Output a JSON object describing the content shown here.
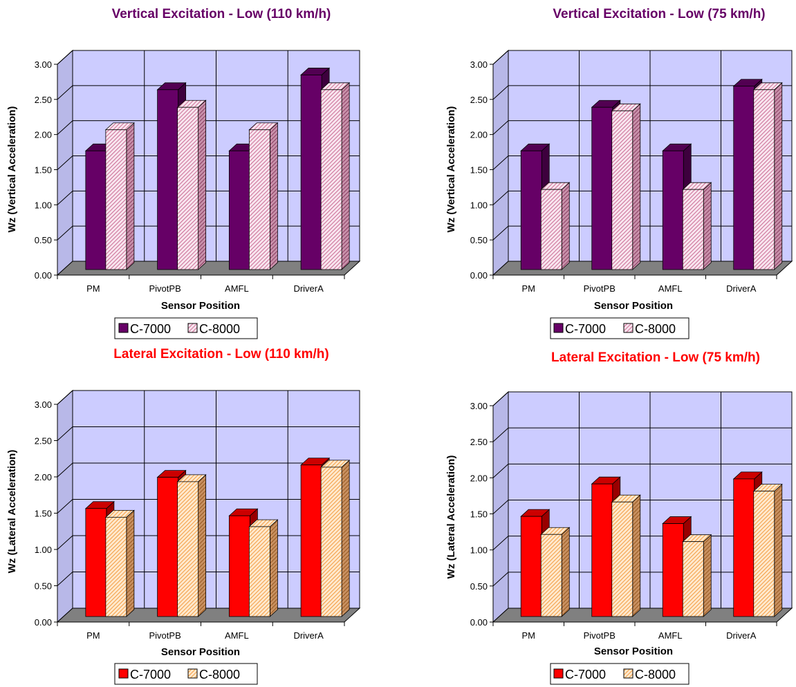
{
  "chart_data": [
    {
      "type": "bar",
      "title": "Vertical Excitation - Low (110 km/h)",
      "title_color": "#660066",
      "xlabel": "Sensor Position",
      "ylabel": "Wz (Vertical Acceleration)",
      "categories": [
        "PM",
        "PivotPB",
        "AMFL",
        "DriverA"
      ],
      "ylim": [
        0,
        3.0
      ],
      "yticks": [
        "0.00",
        "0.50",
        "1.00",
        "1.50",
        "2.00",
        "2.50",
        "3.00"
      ],
      "grid": true,
      "legend_position": "bottom",
      "series": [
        {
          "name": "C-7000",
          "values": [
            1.65,
            2.52,
            1.65,
            2.73
          ],
          "color": "#660066",
          "pattern": "solid"
        },
        {
          "name": "C-8000",
          "values": [
            1.95,
            2.27,
            1.95,
            2.52
          ],
          "color": "#cc6699",
          "pattern": "hatch"
        }
      ]
    },
    {
      "type": "bar",
      "title": "Vertical Excitation - Low (75 km/h)",
      "title_color": "#660066",
      "xlabel": "Sensor Position",
      "ylabel": "Wz (Vertical Acceleration)",
      "categories": [
        "PM",
        "PivotPB",
        "AMFL",
        "DriverA"
      ],
      "ylim": [
        0,
        3.0
      ],
      "yticks": [
        "0.00",
        "0.50",
        "1.00",
        "1.50",
        "2.00",
        "2.50",
        "3.00"
      ],
      "grid": true,
      "legend_position": "bottom",
      "series": [
        {
          "name": "C-7000",
          "values": [
            1.65,
            2.27,
            1.65,
            2.57
          ],
          "color": "#660066",
          "pattern": "solid"
        },
        {
          "name": "C-8000",
          "values": [
            1.1,
            2.22,
            1.1,
            2.52
          ],
          "color": "#cc6699",
          "pattern": "hatch"
        }
      ]
    },
    {
      "type": "bar",
      "title": "Lateral Excitation - Low (110 km/h)",
      "title_color": "#ff0000",
      "xlabel": "Sensor Position",
      "ylabel": "Wz (Lateral Acceleration)",
      "categories": [
        "PM",
        "PivotPB",
        "AMFL",
        "DriverA"
      ],
      "ylim": [
        0,
        3.0
      ],
      "yticks": [
        "0.00",
        "0.50",
        "1.00",
        "1.50",
        "2.00",
        "2.50",
        "3.00"
      ],
      "grid": true,
      "legend_position": "bottom",
      "series": [
        {
          "name": "C-7000",
          "values": [
            1.45,
            1.88,
            1.35,
            2.05
          ],
          "color": "#ff0000",
          "pattern": "solid"
        },
        {
          "name": "C-8000",
          "values": [
            1.33,
            1.82,
            1.2,
            2.02
          ],
          "color": "#ff9933",
          "pattern": "hatch"
        }
      ]
    },
    {
      "type": "bar",
      "title": "Lateral  Excitation - Low (75 km/h)",
      "title_color": "#ff0000",
      "xlabel": "Sensor Position",
      "ylabel": "Wz (Lateral Acceleration)",
      "categories": [
        "PM",
        "PivotPB",
        "AMFL",
        "DriverA"
      ],
      "ylim": [
        0,
        3.0
      ],
      "yticks": [
        "0.00",
        "0.50",
        "1.00",
        "1.50",
        "2.00",
        "2.50",
        "3.00"
      ],
      "grid": true,
      "legend_position": "bottom",
      "series": [
        {
          "name": "C-7000",
          "values": [
            1.35,
            1.8,
            1.25,
            1.87
          ],
          "color": "#ff0000",
          "pattern": "solid"
        },
        {
          "name": "C-8000",
          "values": [
            1.1,
            1.55,
            1.0,
            1.7
          ],
          "color": "#ff9933",
          "pattern": "hatch"
        }
      ]
    }
  ]
}
